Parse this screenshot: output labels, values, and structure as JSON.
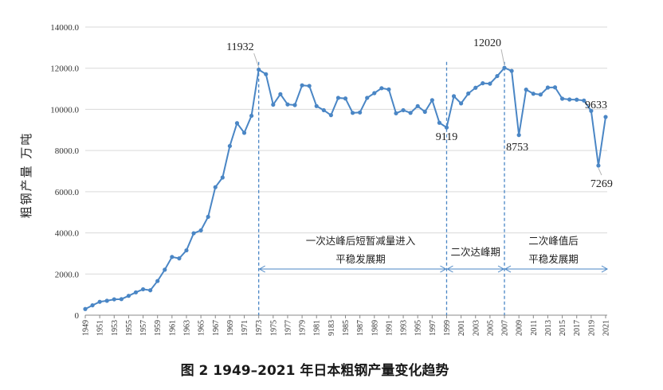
{
  "chart_data": {
    "type": "line",
    "caption": "图 2 1949–2021 年日本粗钢产量变化趋势",
    "ylabel": "粗钢产量 万吨",
    "ylim": [
      0,
      14000
    ],
    "yticks": [
      "0",
      "2000.0",
      "4000.0",
      "6000.0",
      "8000.0",
      "10000.0",
      "12000.0",
      "14000.0"
    ],
    "xticks": [
      "1949",
      "1951",
      "1953",
      "1955",
      "1957",
      "1959",
      "1961",
      "1963",
      "1965",
      "1967",
      "1969",
      "1971",
      "1973",
      "1975",
      "1977",
      "1979",
      "1981",
      "9183",
      "1985",
      "1987",
      "1989",
      "1991",
      "1993",
      "1995",
      "1997",
      "1999",
      "2001",
      "2003",
      "2005",
      "2007",
      "2009",
      "2011",
      "2013",
      "2015",
      "2017",
      "2019",
      "2021"
    ],
    "series": [
      {
        "color": "#4a86c5",
        "x": [
          1949,
          1950,
          1951,
          1952,
          1953,
          1954,
          1955,
          1956,
          1957,
          1958,
          1959,
          1960,
          1961,
          1962,
          1963,
          1964,
          1965,
          1966,
          1967,
          1968,
          1969,
          1970,
          1971,
          1972,
          1973,
          1974,
          1975,
          1976,
          1977,
          1978,
          1979,
          1980,
          1981,
          1982,
          1983,
          1984,
          1985,
          1986,
          1987,
          1988,
          1989,
          1990,
          1991,
          1992,
          1993,
          1994,
          1995,
          1996,
          1997,
          1998,
          1999,
          2000,
          2001,
          2002,
          2003,
          2004,
          2005,
          2006,
          2007,
          2008,
          2009,
          2010,
          2011,
          2012,
          2013,
          2014,
          2015,
          2016,
          2017,
          2018,
          2019,
          2020,
          2021
        ],
        "values": [
          300,
          480,
          650,
          700,
          770,
          780,
          940,
          1110,
          1260,
          1210,
          1660,
          2210,
          2830,
          2760,
          3150,
          3980,
          4120,
          4780,
          6220,
          6690,
          8220,
          9330,
          8860,
          9690,
          11932,
          11710,
          10230,
          10740,
          10240,
          10210,
          11170,
          11140,
          10160,
          9960,
          9720,
          10560,
          10530,
          9830,
          9850,
          10560,
          10790,
          11030,
          10970,
          9810,
          9960,
          9830,
          10160,
          9880,
          10450,
          9350,
          9119,
          10640,
          10290,
          10770,
          11050,
          11270,
          11250,
          11620,
          12020,
          11870,
          8753,
          10960,
          10760,
          10720,
          11060,
          11070,
          10520,
          10480,
          10470,
          10430,
          9930,
          7269,
          9633
        ]
      }
    ],
    "annotations": {
      "peak1": "11932",
      "trough1": "9119",
      "peak2": "12020",
      "trough2": "8753",
      "trough3": "7269",
      "last": "9633"
    },
    "periods": [
      {
        "line1": "一次达峰后短暂减量进入",
        "line2": "平稳发展期"
      },
      {
        "line1": "二次达峰期",
        "line2": ""
      },
      {
        "line1": "二次峰值后",
        "line2": "平稳发展期"
      }
    ],
    "grid": true,
    "colors": {
      "line": "#4a86c5",
      "grid": "#d9d9d9",
      "axis": "#888888"
    }
  }
}
